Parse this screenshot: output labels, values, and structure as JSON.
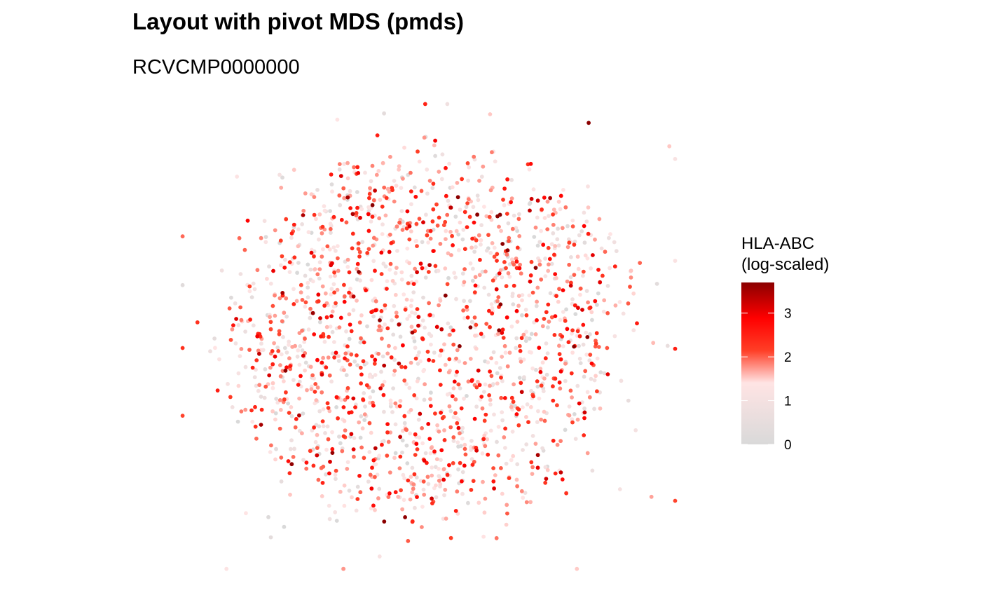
{
  "chart_data": {
    "type": "scatter",
    "title": "Layout with pivot MDS (pmds)",
    "subtitle": "RCVCMP0000000",
    "xlabel": "",
    "ylabel": "",
    "axes_visible": false,
    "grid": false,
    "color_scale": {
      "title_lines": [
        "HLA-ABC",
        "(log-scaled)"
      ],
      "variable": "HLA-ABC",
      "transform": "log",
      "domain": [
        0,
        3.7
      ],
      "breaks": [
        0,
        1,
        2,
        3
      ],
      "break_labels": [
        "0",
        "1",
        "2",
        "3"
      ],
      "colors": [
        "#d9d9d9",
        "#ffe4e4",
        "#ff3e26",
        "#ff0000",
        "#8b0000"
      ],
      "color_stops": [
        0,
        0.38,
        0.58,
        0.78,
        1
      ]
    },
    "legend_position": "right",
    "point_count": 1800,
    "point_cloud": {
      "x_range": [
        -1,
        1
      ],
      "y_range": [
        -1,
        1
      ],
      "shape": "roughly elliptical cloud, denser in center, sparse outliers",
      "sample_outliers": [
        {
          "x": -0.93,
          "y": 0.06,
          "value": 2.3
        },
        {
          "x": 0.96,
          "y": -0.04,
          "value": 0.6
        },
        {
          "x": -0.18,
          "y": 0.95,
          "value": 0.4
        },
        {
          "x": 0.55,
          "y": 0.55,
          "value": 1.9
        }
      ]
    }
  }
}
